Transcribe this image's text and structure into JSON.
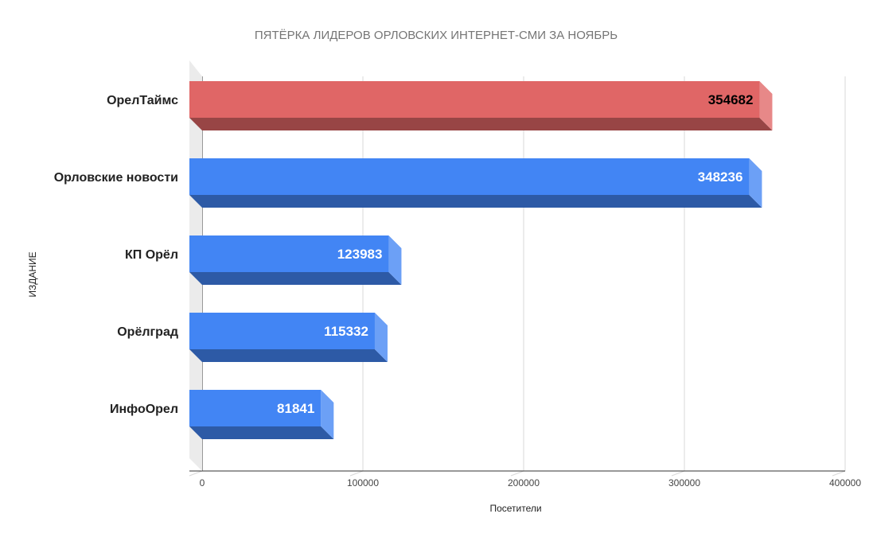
{
  "chart_data": {
    "type": "bar",
    "orientation": "horizontal",
    "style": "3d",
    "title": "ПЯТЁРКА ЛИДЕРОВ ОРЛОВСКИХ ИНТЕРНЕТ-СМИ ЗА НОЯБРЬ",
    "xlabel": "Посетители",
    "ylabel": "ИЗДАНИЕ",
    "categories": [
      "ОрелТаймс",
      "Орловские новости",
      "КП Орёл",
      "Орёлград",
      "ИнфоОрел"
    ],
    "values": [
      354682,
      348236,
      123983,
      115332,
      81841
    ],
    "value_labels": [
      "354682",
      "348236",
      "123983",
      "115332",
      "81841"
    ],
    "bar_colors": [
      "#e06666",
      "#4285f4",
      "#4285f4",
      "#4285f4",
      "#4285f4"
    ],
    "value_label_colors": [
      "#000000",
      "#ffffff",
      "#ffffff",
      "#ffffff",
      "#ffffff"
    ],
    "xlim": [
      0,
      400000
    ],
    "xticks": [
      0,
      100000,
      200000,
      300000,
      400000
    ],
    "xtick_labels": [
      "0",
      "100000",
      "200000",
      "300000",
      "400000"
    ],
    "grid": true,
    "legend": "none"
  }
}
